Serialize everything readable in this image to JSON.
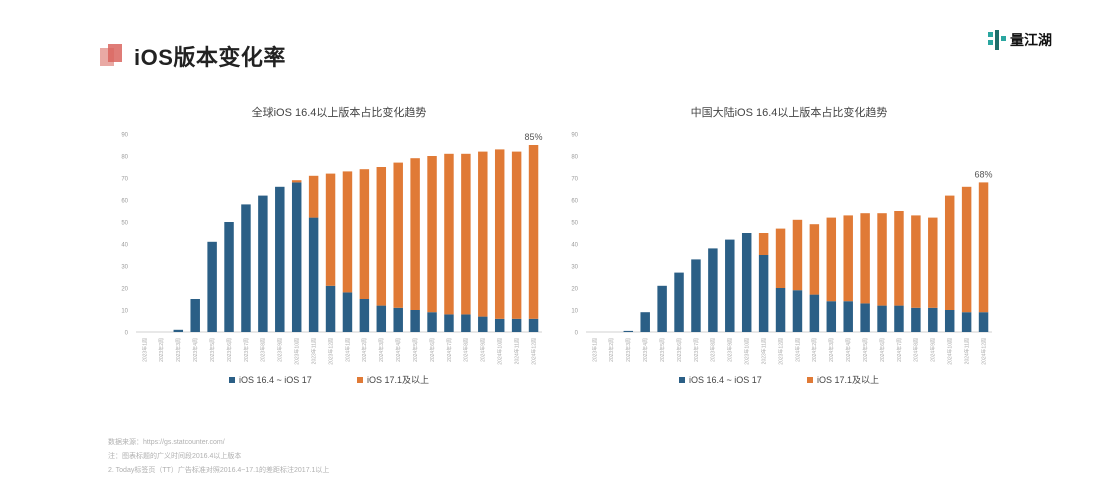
{
  "page": {
    "title": "iOS版本变化率",
    "brand": "量江湖"
  },
  "footnotes": [
    "数据来源：https://gs.statcounter.com/",
    "注：图表标题的广义时间段2016.4以上版本",
    "2. Today标签页（TT）广告标准对照2016.4~17.1的差距标注2017.1以上"
  ],
  "colors": {
    "series1": "#2b5f86",
    "series2": "#e07a36",
    "axis": "#d0d0d0",
    "text": "#555555"
  },
  "chart_data": [
    {
      "type": "bar",
      "stacked": true,
      "title": "全球iOS 16.4以上版本占比变化趋势",
      "categories": [
        "2023年1周",
        "2023年2周",
        "2023年3周",
        "2023年4周",
        "2023年5周",
        "2023年6周",
        "2023年7周",
        "2023年8周",
        "2023年9周",
        "2023年10周",
        "2023年11周",
        "2023年12周",
        "2024年1周",
        "2024年2周",
        "2024年3周",
        "2024年4周",
        "2024年5周",
        "2024年6周",
        "2024年7周",
        "2024年8周",
        "2024年9周",
        "2024年10周",
        "2024年11周",
        "2024年12周"
      ],
      "series": [
        {
          "name": "iOS 16.4 ~ iOS 17",
          "values": [
            0,
            0,
            1,
            15,
            41,
            50,
            58,
            62,
            66,
            68,
            52,
            21,
            18,
            15,
            12,
            11,
            10,
            9,
            8,
            8,
            7,
            6,
            6,
            6
          ]
        },
        {
          "name": "iOS 17.1及以上",
          "values": [
            0,
            0,
            0,
            0,
            0,
            0,
            0,
            0,
            0,
            1,
            19,
            51,
            55,
            59,
            63,
            66,
            69,
            71,
            73,
            73,
            75,
            77,
            76,
            79
          ]
        }
      ],
      "annotation": "85%",
      "ylim": [
        0,
        90
      ],
      "yticks": [
        0,
        10,
        20,
        30,
        40,
        50,
        60,
        70,
        80,
        90
      ],
      "grid": false,
      "legend": "bottom"
    },
    {
      "type": "bar",
      "stacked": true,
      "title": "中国大陆iOS 16.4以上版本占比变化趋势",
      "categories": [
        "2023年1周",
        "2023年2周",
        "2023年3周",
        "2023年4周",
        "2023年5周",
        "2023年6周",
        "2023年7周",
        "2023年8周",
        "2023年9周",
        "2023年10周",
        "2023年11周",
        "2023年12周",
        "2024年1周",
        "2024年2周",
        "2024年3周",
        "2024年4周",
        "2024年5周",
        "2024年6周",
        "2024年7周",
        "2024年8周",
        "2024年9周",
        "2024年10周",
        "2024年11周",
        "2024年12周"
      ],
      "series": [
        {
          "name": "iOS 16.4 ~ iOS 17",
          "values": [
            0,
            0,
            0.5,
            9,
            21,
            27,
            33,
            38,
            42,
            45,
            35,
            20,
            19,
            17,
            14,
            14,
            13,
            12,
            12,
            11,
            11,
            10,
            9,
            9
          ]
        },
        {
          "name": "iOS 17.1及以上",
          "values": [
            0,
            0,
            0,
            0,
            0,
            0,
            0,
            0,
            0,
            0,
            10,
            27,
            32,
            32,
            38,
            39,
            41,
            42,
            43,
            42,
            41,
            52,
            57,
            59
          ]
        }
      ],
      "annotation": "68%",
      "ylim": [
        0,
        90
      ],
      "yticks": [
        0,
        10,
        20,
        30,
        40,
        50,
        60,
        70,
        80,
        90
      ],
      "grid": false,
      "legend": "bottom"
    }
  ]
}
